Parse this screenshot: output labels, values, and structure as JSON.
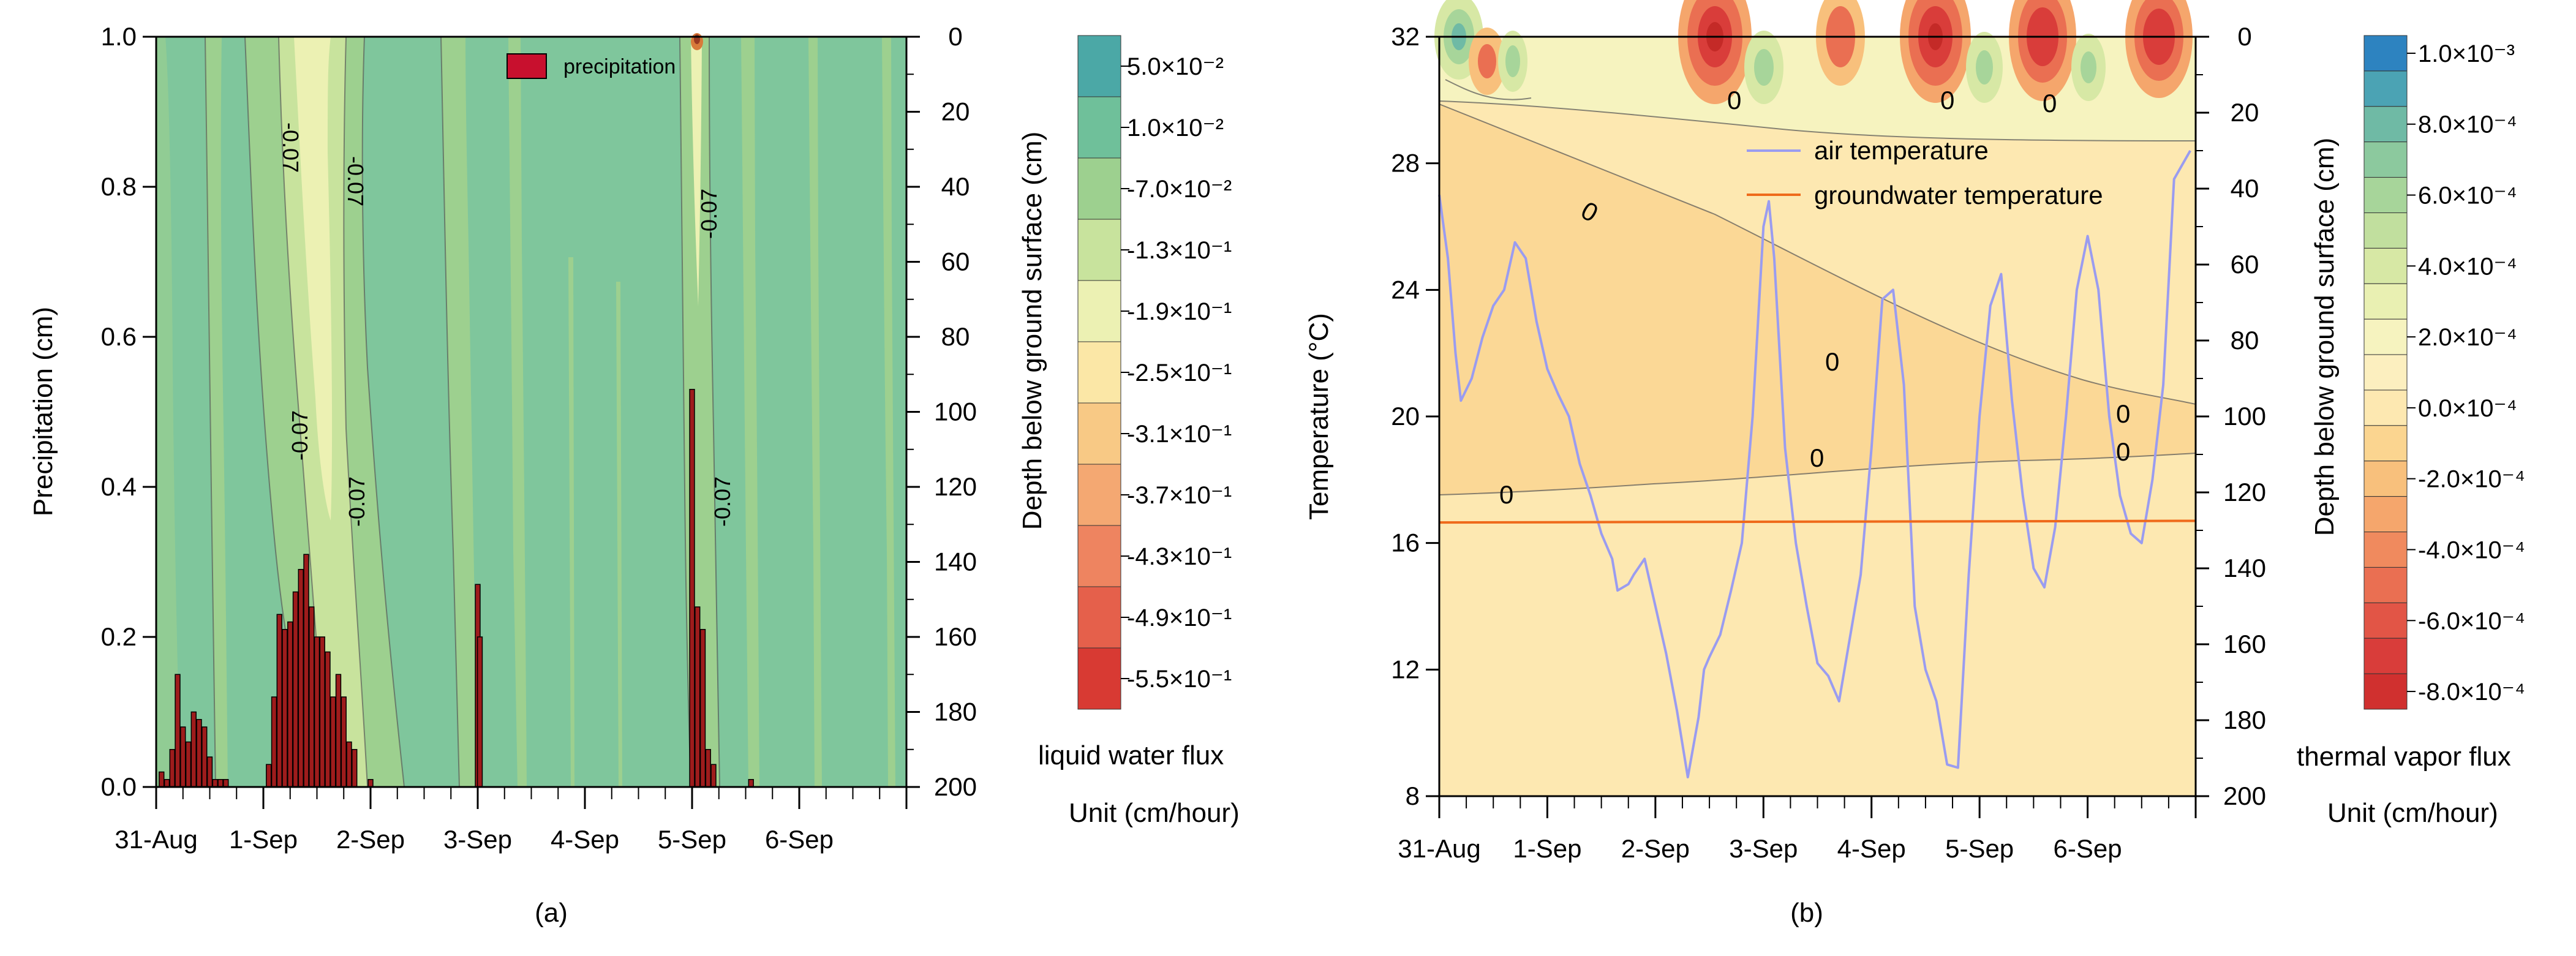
{
  "chart_data": [
    {
      "panel": "(a)",
      "type": "contour",
      "title": "",
      "ylabel_left": "Precipitation (cm)",
      "ylabel_right": "Depth below ground surface (cm)",
      "y_left_lim": [
        0.0,
        1.0
      ],
      "y_left_ticks": [
        "0.0",
        "0.2",
        "0.4",
        "0.6",
        "0.8",
        "1.0"
      ],
      "y_right_lim": [
        0,
        200
      ],
      "y_right_ticks": [
        "0",
        "20",
        "40",
        "60",
        "80",
        "100",
        "120",
        "140",
        "160",
        "180",
        "200"
      ],
      "x_ticks": [
        "31-Aug",
        "1-Sep",
        "2-Sep",
        "3-Sep",
        "4-Sep",
        "5-Sep",
        "6-Sep"
      ],
      "legend": {
        "label": "precipitation",
        "position": "top-right",
        "color": "#c8102e"
      },
      "contour_labels": [
        "-0.07",
        "-0.07",
        "-0.07",
        "-0.07",
        "-0.07",
        "-0.07"
      ],
      "colorbar": {
        "title": "liquid water flux",
        "unit": "Unit (cm/hour)",
        "levels": [
          {
            "label": "5.0×10⁻²",
            "color": "#4ba8a6"
          },
          {
            "label": "1.0×10⁻²",
            "color": "#6fc09a"
          },
          {
            "label": "-7.0×10⁻²",
            "color": "#9dd08f"
          },
          {
            "label": "-1.3×10⁻¹",
            "color": "#c8e39d"
          },
          {
            "label": "-1.9×10⁻¹",
            "color": "#ecf1b3"
          },
          {
            "label": "-2.5×10⁻¹",
            "color": "#fbe7a6"
          },
          {
            "label": "-3.1×10⁻¹",
            "color": "#f8c985"
          },
          {
            "label": "-3.7×10⁻¹",
            "color": "#f4a872"
          },
          {
            "label": "-4.3×10⁻¹",
            "color": "#ee8460"
          },
          {
            "label": "-4.9×10⁻¹",
            "color": "#e5604b"
          },
          {
            "label": "-5.5×10⁻¹",
            "color": "#d83a33"
          }
        ]
      },
      "bars": {
        "label": "precipitation",
        "color": "#9e1c1c",
        "x_days": [
          0.05,
          0.1,
          0.15,
          0.2,
          0.25,
          0.3,
          0.35,
          0.4,
          0.45,
          0.5,
          0.55,
          0.6,
          0.65,
          1.05,
          1.1,
          1.15,
          1.2,
          1.25,
          1.3,
          1.35,
          1.4,
          1.45,
          1.5,
          1.55,
          1.6,
          1.65,
          1.7,
          1.75,
          1.8,
          1.85,
          2.0,
          3.0,
          3.02,
          5.0,
          5.05,
          5.1,
          5.15,
          5.2,
          5.55
        ],
        "values": [
          0.02,
          0.01,
          0.05,
          0.15,
          0.08,
          0.06,
          0.1,
          0.09,
          0.08,
          0.04,
          0.01,
          0.01,
          0.01,
          0.03,
          0.12,
          0.23,
          0.21,
          0.22,
          0.26,
          0.29,
          0.31,
          0.24,
          0.2,
          0.2,
          0.18,
          0.12,
          0.15,
          0.12,
          0.06,
          0.05,
          0.01,
          0.27,
          0.2,
          0.53,
          0.24,
          0.21,
          0.05,
          0.03,
          0.01
        ]
      }
    },
    {
      "panel": "(b)",
      "type": "contour+line",
      "ylabel_left": "Temperature (°C)",
      "ylabel_right": "Depth below ground surface (cm)",
      "y_left_lim": [
        8,
        32
      ],
      "y_left_ticks": [
        "8",
        "12",
        "16",
        "20",
        "24",
        "28",
        "32"
      ],
      "y_right_lim": [
        0,
        200
      ],
      "y_right_ticks": [
        "0",
        "20",
        "40",
        "60",
        "80",
        "100",
        "120",
        "140",
        "160",
        "180",
        "200"
      ],
      "x_ticks": [
        "31-Aug",
        "1-Sep",
        "2-Sep",
        "3-Sep",
        "4-Sep",
        "5-Sep",
        "6-Sep"
      ],
      "contour_labels": [
        "0",
        "0",
        "0",
        "0",
        "0",
        "0",
        "0",
        "0",
        "0"
      ],
      "legend": [
        {
          "label": "air temperature",
          "color": "#9a9cf0"
        },
        {
          "label": "groundwater temperature",
          "color": "#ef6a1b"
        }
      ],
      "colorbar": {
        "title": "thermal vapor flux",
        "unit": "Unit (cm/hour)",
        "levels": [
          {
            "label": "1.0×10⁻³",
            "color": "#2d83c0"
          },
          {
            "label": "",
            "color": "#4ba3b4"
          },
          {
            "label": "8.0×10⁻⁴",
            "color": "#6fbaa5"
          },
          {
            "label": "",
            "color": "#8cc99e"
          },
          {
            "label": "6.0×10⁻⁴",
            "color": "#a7d59a"
          },
          {
            "label": "",
            "color": "#c1df9e"
          },
          {
            "label": "4.0×10⁻⁴",
            "color": "#d7e8a5"
          },
          {
            "label": "",
            "color": "#e9f0b2"
          },
          {
            "label": "2.0×10⁻⁴",
            "color": "#f6f3bf"
          },
          {
            "label": "",
            "color": "#fcefbf"
          },
          {
            "label": "0.0×10⁻⁴",
            "color": "#fde8b1"
          },
          {
            "label": "",
            "color": "#fbd590"
          },
          {
            "label": "-2.0×10⁻⁴",
            "color": "#f8c07c"
          },
          {
            "label": "",
            "color": "#f5a66c"
          },
          {
            "label": "-4.0×10⁻⁴",
            "color": "#f08a5e"
          },
          {
            "label": "",
            "color": "#ea6f52"
          },
          {
            "label": "-6.0×10⁻⁴",
            "color": "#e25546"
          },
          {
            "label": "",
            "color": "#d93d3a"
          },
          {
            "label": "-8.0×10⁻⁴",
            "color": "#d0302f"
          }
        ]
      },
      "series": [
        {
          "name": "air temperature",
          "color": "#9a9cf0",
          "x_days": [
            0,
            0.08,
            0.15,
            0.2,
            0.3,
            0.4,
            0.5,
            0.6,
            0.7,
            0.8,
            0.9,
            1.0,
            1.1,
            1.2,
            1.3,
            1.4,
            1.5,
            1.6,
            1.65,
            1.75,
            1.8,
            1.9,
            2.0,
            2.1,
            2.2,
            2.3,
            2.4,
            2.45,
            2.5,
            2.6,
            2.7,
            2.8,
            2.9,
            3.0,
            3.05,
            3.1,
            3.2,
            3.3,
            3.4,
            3.5,
            3.6,
            3.7,
            3.8,
            3.9,
            4.0,
            4.1,
            4.2,
            4.3,
            4.4,
            4.5,
            4.6,
            4.7,
            4.8,
            4.9,
            5.0,
            5.1,
            5.2,
            5.3,
            5.4,
            5.5,
            5.6,
            5.7,
            5.8,
            5.9,
            6.0,
            6.1,
            6.2,
            6.3,
            6.4,
            6.5,
            6.6,
            6.7,
            6.8,
            6.95
          ],
          "values": [
            27,
            25,
            22,
            20.5,
            21.2,
            22.5,
            23.5,
            24,
            25.5,
            25,
            23,
            21.5,
            20.7,
            20,
            18.5,
            17.5,
            16.3,
            15.5,
            14.5,
            14.7,
            15,
            15.5,
            14,
            12.5,
            10.7,
            8.6,
            10.5,
            12,
            12.4,
            13.1,
            14.5,
            16,
            20,
            26,
            26.8,
            25,
            19,
            16,
            14,
            12.2,
            11.8,
            11,
            13,
            15,
            19,
            23.7,
            24,
            21,
            14,
            12,
            11,
            9,
            8.9,
            15,
            20,
            23.5,
            24.5,
            20.5,
            17.5,
            15.2,
            14.6,
            16.5,
            20,
            24,
            25.7,
            24,
            20,
            17.5,
            16.3,
            16,
            18,
            21,
            27.5,
            28.4
          ]
        },
        {
          "name": "groundwater temperature",
          "color": "#ef6a1b",
          "x_days": [
            0,
            7
          ],
          "values": [
            16.65,
            16.7
          ]
        }
      ]
    }
  ],
  "captions": {
    "a": "(a)",
    "b": "(b)"
  }
}
